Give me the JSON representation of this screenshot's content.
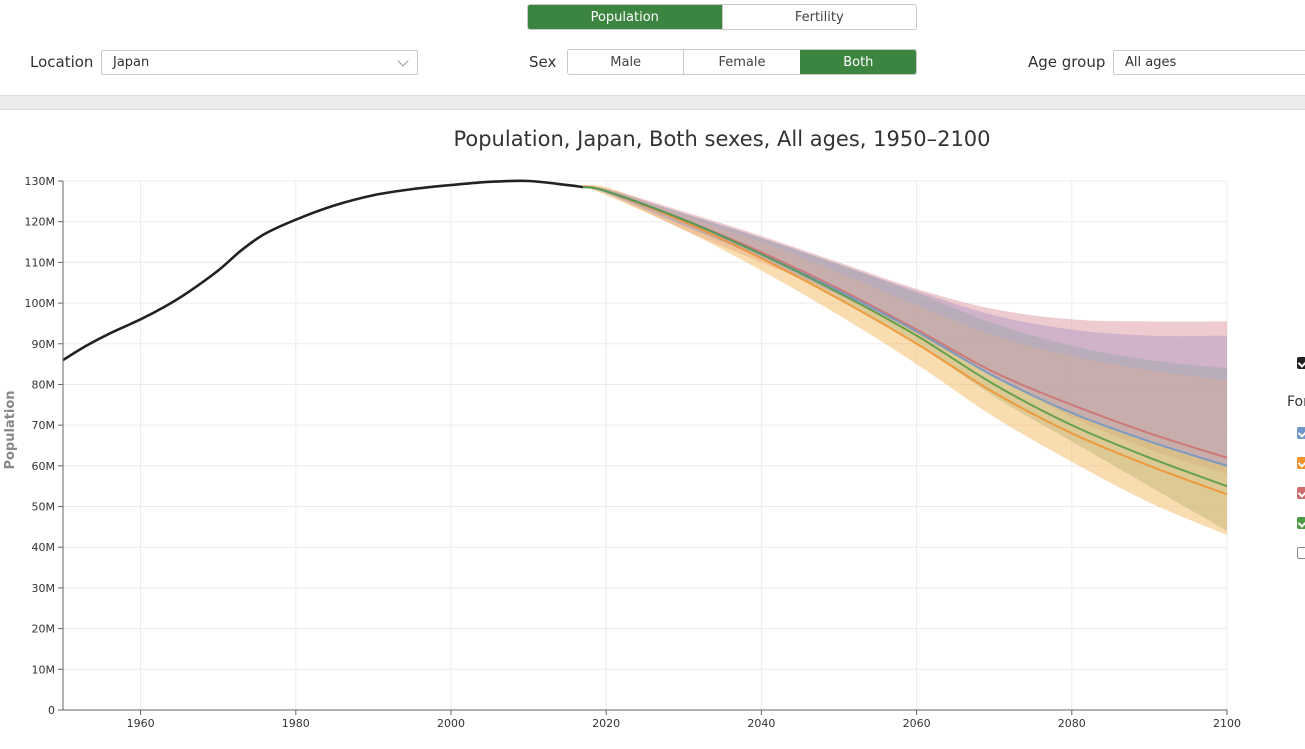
{
  "controls": {
    "view_tabs": [
      {
        "label": "Population",
        "active": true
      },
      {
        "label": "Fertility",
        "active": false
      }
    ],
    "location_label": "Location",
    "location_value": "Japan",
    "sex_label": "Sex",
    "sex_options": [
      {
        "label": "Male",
        "active": false
      },
      {
        "label": "Female",
        "active": false
      },
      {
        "label": "Both",
        "active": true
      }
    ],
    "age_label": "Age group",
    "age_value": "All ages"
  },
  "colors": {
    "accent": "#3b8540",
    "historical": "#222222",
    "scenario_blue": "#6f96c6",
    "scenario_orange": "#f0922e",
    "scenario_red": "#cf6e6e",
    "scenario_green": "#4f9a45"
  },
  "legend": {
    "heading_fragment": "For",
    "items": [
      {
        "color": "#222222",
        "checked": true
      },
      {
        "color": "#6f96c6",
        "checked": true
      },
      {
        "color": "#f0922e",
        "checked": true
      },
      {
        "color": "#cf6e6e",
        "checked": true
      },
      {
        "color": "#4f9a45",
        "checked": true
      },
      {
        "color": "#ffffff",
        "checked": false
      }
    ]
  },
  "chart_data": {
    "type": "line",
    "title": "Population, Japan, Both sexes, All ages, 1950–2100",
    "xlabel": "",
    "ylabel": "Population",
    "xlim": [
      1950,
      2100
    ],
    "ylim": [
      0,
      130
    ],
    "x_ticks": [
      "1960",
      "1980",
      "2000",
      "2020",
      "2040",
      "2060",
      "2080",
      "2100"
    ],
    "y_ticks": [
      "0",
      "10M",
      "20M",
      "30M",
      "40M",
      "50M",
      "60M",
      "70M",
      "80M",
      "90M",
      "100M",
      "110M",
      "120M",
      "130M"
    ],
    "grid": true,
    "historical": {
      "x": [
        1950,
        1953,
        1956,
        1960,
        1963,
        1966,
        1970,
        1973,
        1976,
        1980,
        1985,
        1990,
        1995,
        2000,
        2005,
        2010,
        2015,
        2017
      ],
      "y": [
        86,
        89.5,
        92.5,
        96,
        99,
        102.5,
        108,
        113,
        117,
        120.5,
        124,
        126.5,
        128,
        129,
        129.8,
        130,
        129,
        128.5
      ]
    },
    "forecast_x": [
      2017,
      2020,
      2030,
      2040,
      2050,
      2060,
      2070,
      2080,
      2090,
      2100
    ],
    "bands": [
      {
        "color": "#e0a0a8",
        "lower": [
          128.5,
          127,
          118,
          110,
          102,
          92,
          82,
          72,
          64,
          58
        ],
        "upper": [
          128.5,
          128.2,
          122.5,
          116.5,
          110,
          103.5,
          98.5,
          96,
          95.5,
          95.5
        ]
      },
      {
        "color": "#8fb090",
        "lower": [
          128.5,
          127,
          119,
          111,
          101,
          90,
          77,
          66,
          55,
          44
        ],
        "upper": [
          128.5,
          128,
          122,
          116,
          109.5,
          102.5,
          95,
          89.5,
          86,
          84
        ]
      },
      {
        "color": "#f4c070",
        "lower": [
          128.5,
          126.5,
          118,
          108,
          97,
          85,
          72,
          61,
          51,
          43
        ],
        "upper": [
          128.5,
          128.5,
          121.5,
          115,
          107.5,
          99.5,
          92,
          87,
          83.5,
          81
        ]
      },
      {
        "color": "#b8a0c8",
        "lower": [
          128.5,
          127,
          119,
          111,
          102,
          93,
          82,
          73,
          66,
          60
        ],
        "upper": [
          128.5,
          128,
          122,
          116,
          109.5,
          103,
          97,
          93.5,
          92,
          92
        ]
      }
    ],
    "series": [
      {
        "color": "#f0922e",
        "values": [
          128.8,
          127.5,
          120,
          111,
          101,
          90,
          78,
          68,
          60,
          53
        ]
      },
      {
        "color": "#cf6e6e",
        "values": [
          128.5,
          127.5,
          120.5,
          112.5,
          103.5,
          93.5,
          83,
          75,
          68,
          62
        ]
      },
      {
        "color": "#6f96c6",
        "values": [
          128.5,
          127.5,
          120.5,
          112,
          103,
          93,
          82,
          73,
          66,
          60
        ]
      },
      {
        "color": "#4f9a45",
        "values": [
          128.5,
          127.5,
          120.5,
          112,
          102.5,
          92,
          80,
          70,
          62,
          55
        ]
      }
    ]
  }
}
